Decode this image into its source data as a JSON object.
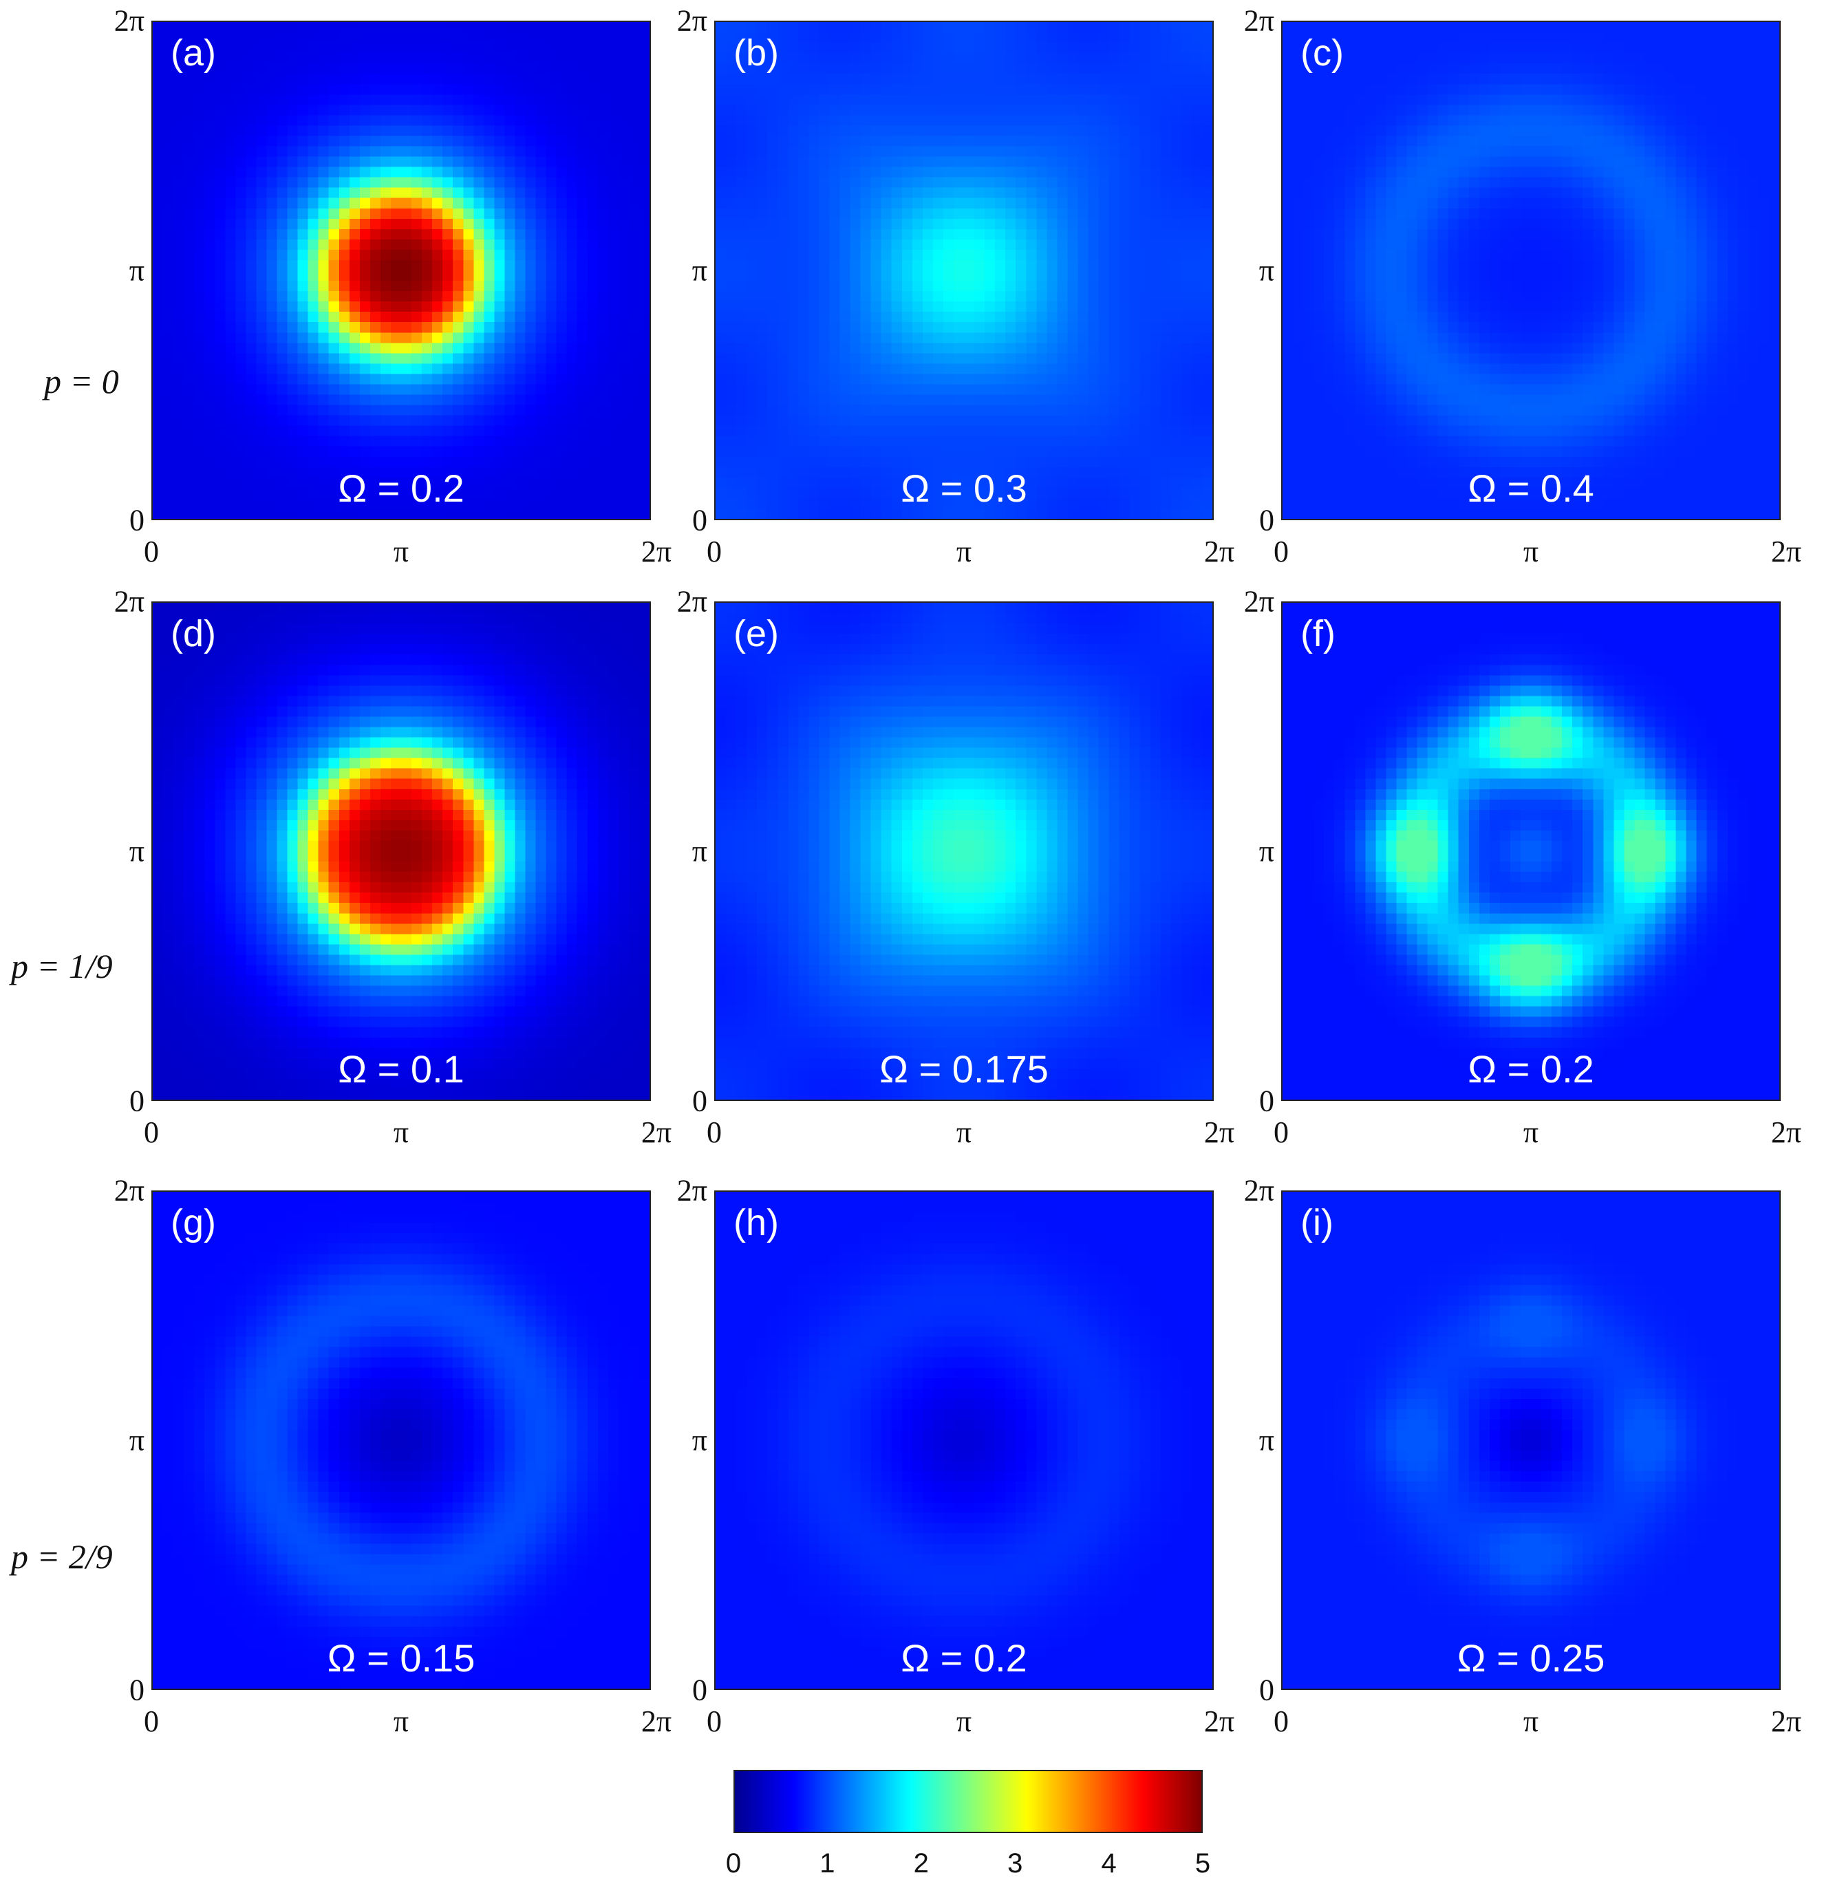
{
  "chart_data": {
    "type": "heatmap",
    "layout": "3x3 grid",
    "x_ticks": [
      "0",
      "π",
      "2π"
    ],
    "y_ticks": [
      "0",
      "π",
      "2π"
    ],
    "row_labels": [
      "p = 0",
      "p = 1/9",
      "p = 2/9"
    ],
    "colormap": "jet",
    "colorbar": {
      "min": 0,
      "max": 5,
      "ticks": [
        "0",
        "1",
        "2",
        "3",
        "4",
        "5"
      ]
    },
    "panels": [
      {
        "label": "(a)",
        "omega": "Ω = 0.2",
        "pattern": "disk",
        "peak": 5.0,
        "background": 0.7,
        "radius": 0.42
      },
      {
        "label": "(b)",
        "omega": "Ω = 0.3",
        "pattern": "blob",
        "peak": 1.9,
        "background": 0.9,
        "radius": 0.55
      },
      {
        "label": "(c)",
        "omega": "Ω = 0.4",
        "pattern": "ring",
        "peak": 1.1,
        "center": 0.75,
        "background": 0.8
      },
      {
        "label": "(d)",
        "omega": "Ω = 0.1",
        "pattern": "disk",
        "peak": 4.9,
        "background": 0.5,
        "radius": 0.5
      },
      {
        "label": "(e)",
        "omega": "Ω = 0.175",
        "pattern": "blob",
        "peak": 2.1,
        "background": 0.8,
        "radius": 0.65
      },
      {
        "label": "(f)",
        "omega": "Ω = 0.2",
        "pattern": "four-lobes",
        "peak": 2.3,
        "center": 1.1,
        "background": 0.7
      },
      {
        "label": "(g)",
        "omega": "Ω = 0.15",
        "pattern": "ring",
        "peak": 1.0,
        "center": 0.35,
        "background": 0.65
      },
      {
        "label": "(h)",
        "omega": "Ω = 0.2",
        "pattern": "ring",
        "peak": 0.85,
        "center": 0.45,
        "background": 0.7
      },
      {
        "label": "(i)",
        "omega": "Ω = 0.25",
        "pattern": "four-lobes",
        "peak": 1.05,
        "center": 0.45,
        "background": 0.75
      }
    ]
  }
}
